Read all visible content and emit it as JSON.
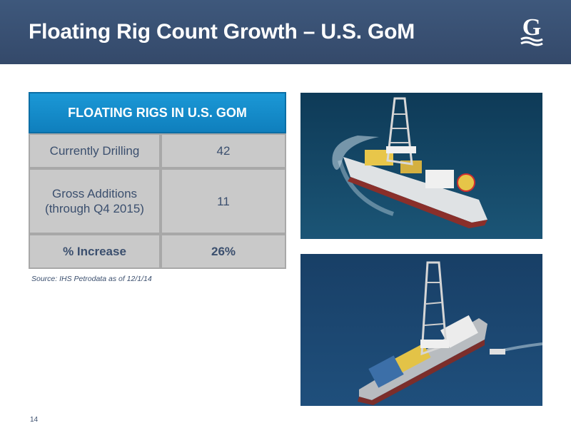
{
  "header": {
    "title": "Floating Rig Count Growth – U.S. GoM",
    "brand_color": "#3b5478"
  },
  "logo": {
    "icon": "company-g-logo-icon",
    "letter": "G"
  },
  "table": {
    "header": "FLOATING RIGS IN U.S. GOM",
    "header_color": "#1a8fd0",
    "rows": [
      {
        "label": "Currently Drilling",
        "value": "42"
      },
      {
        "label_line1": "Gross Additions",
        "label_line2": "(through Q4 2015)",
        "value": "11"
      },
      {
        "label": "% Increase",
        "value": "26%"
      }
    ]
  },
  "source": "Source: IHS Petrodata as of 12/1/14",
  "images": [
    {
      "icon": "drillship-photo-icon"
    },
    {
      "icon": "drillship-photo-icon"
    }
  ],
  "page_number": "14"
}
